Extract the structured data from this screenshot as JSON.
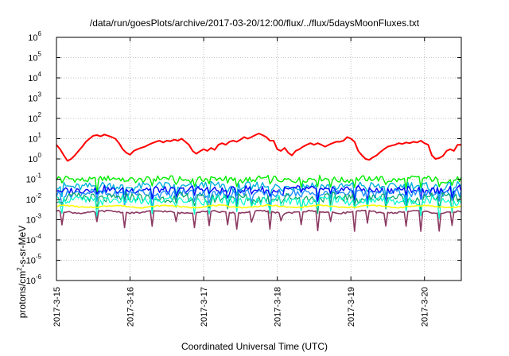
{
  "chart_data": {
    "type": "line",
    "title": "/data/run/goesPlots/archive/2017-03-20/12:00/flux/../flux/5daysMoonFluxes.txt",
    "xlabel": "Coordinated Universal Time (UTC)",
    "ylabel_main": "protons/cm",
    "ylabel_sup": "2",
    "ylabel_rest": "-s-sr-MeV",
    "yscale": "log",
    "ylim": [
      1e-06,
      1000000.0
    ],
    "xlim": [
      "2017-3-15",
      "2017-3-20 12:00"
    ],
    "grid": true,
    "y_ticks": [
      {
        "value": 1e-06,
        "base": "10",
        "exp": "-6"
      },
      {
        "value": 1e-05,
        "base": "10",
        "exp": "-5"
      },
      {
        "value": 0.0001,
        "base": "10",
        "exp": "-4"
      },
      {
        "value": 0.001,
        "base": "10",
        "exp": "-3"
      },
      {
        "value": 0.01,
        "base": "10",
        "exp": "-2"
      },
      {
        "value": 0.1,
        "base": "10",
        "exp": "-1"
      },
      {
        "value": 1,
        "base": "10",
        "exp": "0"
      },
      {
        "value": 10,
        "base": "10",
        "exp": "1"
      },
      {
        "value": 100,
        "base": "10",
        "exp": "2"
      },
      {
        "value": 1000,
        "base": "10",
        "exp": "3"
      },
      {
        "value": 10000,
        "base": "10",
        "exp": "4"
      },
      {
        "value": 100000,
        "base": "10",
        "exp": "5"
      },
      {
        "value": 1000000,
        "base": "10",
        "exp": "6"
      }
    ],
    "x_ticks": [
      {
        "day": 0,
        "label": "2017-3-15"
      },
      {
        "day": 1,
        "label": "2017-3-16"
      },
      {
        "day": 2,
        "label": "2017-3-17"
      },
      {
        "day": 3,
        "label": "2017-3-18"
      },
      {
        "day": 4,
        "label": "2017-3-19"
      },
      {
        "day": 5,
        "label": "2017-3-20"
      }
    ],
    "series": [
      {
        "color": "#ff0000",
        "width": 2,
        "points": [
          [
            0,
            5
          ],
          [
            0.05,
            3
          ],
          [
            0.1,
            1.5
          ],
          [
            0.15,
            0.8
          ],
          [
            0.2,
            1
          ],
          [
            0.25,
            1.5
          ],
          [
            0.3,
            2.5
          ],
          [
            0.35,
            4
          ],
          [
            0.4,
            7
          ],
          [
            0.45,
            10
          ],
          [
            0.5,
            14
          ],
          [
            0.55,
            15
          ],
          [
            0.6,
            13
          ],
          [
            0.65,
            16
          ],
          [
            0.7,
            14
          ],
          [
            0.75,
            12
          ],
          [
            0.8,
            10
          ],
          [
            0.85,
            6
          ],
          [
            0.9,
            3
          ],
          [
            0.95,
            2
          ],
          [
            1.0,
            1.6
          ],
          [
            1.05,
            2.5
          ],
          [
            1.1,
            3
          ],
          [
            1.15,
            3.5
          ],
          [
            1.2,
            4
          ],
          [
            1.25,
            5
          ],
          [
            1.3,
            6
          ],
          [
            1.35,
            7
          ],
          [
            1.4,
            8
          ],
          [
            1.45,
            6.5
          ],
          [
            1.5,
            8
          ],
          [
            1.55,
            7.5
          ],
          [
            1.6,
            9
          ],
          [
            1.65,
            8
          ],
          [
            1.7,
            10
          ],
          [
            1.75,
            7
          ],
          [
            1.8,
            5
          ],
          [
            1.85,
            2.5
          ],
          [
            1.9,
            1.8
          ],
          [
            1.95,
            2.4
          ],
          [
            2.0,
            3
          ],
          [
            2.05,
            2.5
          ],
          [
            2.1,
            3.5
          ],
          [
            2.15,
            2.8
          ],
          [
            2.2,
            5
          ],
          [
            2.25,
            6
          ],
          [
            2.3,
            5
          ],
          [
            2.35,
            7
          ],
          [
            2.4,
            8
          ],
          [
            2.45,
            7
          ],
          [
            2.5,
            9
          ],
          [
            2.55,
            12
          ],
          [
            2.6,
            10
          ],
          [
            2.65,
            12
          ],
          [
            2.7,
            15
          ],
          [
            2.75,
            18
          ],
          [
            2.8,
            15
          ],
          [
            2.85,
            12
          ],
          [
            2.9,
            8
          ],
          [
            2.95,
            8
          ],
          [
            3.0,
            3
          ],
          [
            3.05,
            2.5
          ],
          [
            3.1,
            3.5
          ],
          [
            3.15,
            2
          ],
          [
            3.2,
            1.5
          ],
          [
            3.25,
            2.5
          ],
          [
            3.3,
            3
          ],
          [
            3.35,
            4
          ],
          [
            3.4,
            5
          ],
          [
            3.45,
            6
          ],
          [
            3.5,
            5
          ],
          [
            3.55,
            6
          ],
          [
            3.6,
            5
          ],
          [
            3.65,
            4
          ],
          [
            3.7,
            5
          ],
          [
            3.75,
            6
          ],
          [
            3.8,
            7
          ],
          [
            3.85,
            7
          ],
          [
            3.9,
            8
          ],
          [
            3.95,
            12
          ],
          [
            4.0,
            10
          ],
          [
            4.05,
            7
          ],
          [
            4.1,
            2.5
          ],
          [
            4.15,
            1.5
          ],
          [
            4.2,
            1
          ],
          [
            4.25,
            0.9
          ],
          [
            4.3,
            1.2
          ],
          [
            4.35,
            1.5
          ],
          [
            4.4,
            2.2
          ],
          [
            4.45,
            3
          ],
          [
            4.5,
            4
          ],
          [
            4.55,
            4.5
          ],
          [
            4.6,
            5
          ],
          [
            4.65,
            6
          ],
          [
            4.7,
            5.5
          ],
          [
            4.75,
            6.5
          ],
          [
            4.8,
            6
          ],
          [
            4.85,
            7
          ],
          [
            4.9,
            6.5
          ],
          [
            4.95,
            8
          ],
          [
            5.0,
            6
          ],
          [
            5.05,
            5
          ],
          [
            5.1,
            1.5
          ],
          [
            5.15,
            1
          ],
          [
            5.2,
            1.1
          ],
          [
            5.25,
            1.4
          ],
          [
            5.3,
            2.5
          ],
          [
            5.35,
            3
          ],
          [
            5.4,
            2.5
          ],
          [
            5.45,
            5
          ],
          [
            5.5,
            5
          ]
        ]
      },
      {
        "color": "#00ee00",
        "width": 1.4,
        "base": 0.1,
        "amp": 0.15,
        "dips": 0.28
      },
      {
        "color": "#00b3d9",
        "width": 1.4,
        "base": 0.045,
        "amp": 0.2,
        "dips": 0.35
      },
      {
        "color": "#0000ff",
        "width": 1.4,
        "base": 0.03,
        "amp": 0.18,
        "dips": 0.3
      },
      {
        "color": "#1e90ff",
        "width": 1.4,
        "base": 0.02,
        "amp": 0.2,
        "dips": 0.35
      },
      {
        "color": "#00aa66",
        "width": 1.2,
        "base": 0.012,
        "amp": 0.22,
        "dips": 0.4
      },
      {
        "color": "#00ffcc",
        "width": 1.2,
        "base": 0.009,
        "amp": 0.22,
        "dips": 0.4
      },
      {
        "color": "#ffff00",
        "width": 1.6,
        "base": 0.0045,
        "amp": 0.03,
        "dips": 0
      },
      {
        "color": "#8b3a62",
        "width": 1.6,
        "base": 0.0024,
        "amp": 0.04,
        "dips": 0.5
      }
    ],
    "spikes": [
      0.08,
      0.55,
      0.92,
      1.3,
      1.62,
      1.88,
      2.08,
      2.33,
      2.45,
      2.66,
      2.9,
      3.06,
      3.33,
      3.55,
      3.72,
      4.05,
      4.22,
      4.48,
      4.75,
      4.95,
      5.2,
      5.38
    ]
  }
}
